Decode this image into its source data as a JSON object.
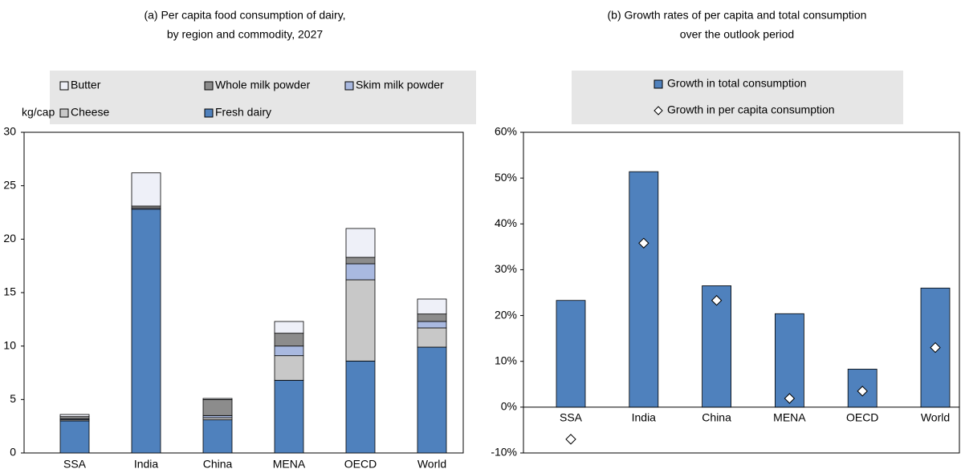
{
  "chart_data": [
    {
      "type": "bar",
      "stacked": true,
      "title": [
        "(a) Per capita food consumption of dairy,",
        "by region and commodity, 2027"
      ],
      "y_label": "kg/cap",
      "categories": [
        "SSA",
        "India",
        "China",
        "MENA",
        "OECD",
        "World"
      ],
      "series": [
        {
          "name": "Fresh dairy",
          "color": "#4f81bd",
          "values": [
            3.0,
            22.8,
            3.1,
            6.8,
            8.6,
            9.9
          ]
        },
        {
          "name": "Cheese",
          "color": "#c8c8c8",
          "values": [
            0.1,
            0.0,
            0.2,
            2.3,
            7.6,
            1.8
          ]
        },
        {
          "name": "Skim milk powder",
          "color": "#a9b9e0",
          "values": [
            0.1,
            0.1,
            0.2,
            0.9,
            1.5,
            0.6
          ]
        },
        {
          "name": "Whole milk powder",
          "color": "#8c8c8c",
          "values": [
            0.2,
            0.2,
            1.5,
            1.2,
            0.6,
            0.7
          ]
        },
        {
          "name": "Butter",
          "color": "#eef0f8",
          "values": [
            0.2,
            3.1,
            0.1,
            1.1,
            2.7,
            1.4
          ]
        }
      ],
      "ylim": [
        0,
        30
      ],
      "yticks": [
        0,
        5,
        10,
        15,
        20,
        25,
        30
      ]
    },
    {
      "type": "bar",
      "title": [
        "(b) Growth rates of per capita and total consumption",
        "over the outlook period"
      ],
      "categories": [
        "SSA",
        "India",
        "China",
        "MENA",
        "OECD",
        "World"
      ],
      "series": [
        {
          "name": "Growth in total consumption",
          "color": "#4f81bd",
          "values": [
            23.3,
            51.4,
            26.5,
            20.4,
            8.3,
            26.0
          ]
        },
        {
          "name": "Growth in per capita consumption",
          "color": "#ffffff",
          "marker": "diamond",
          "values": [
            -7.0,
            35.8,
            23.3,
            1.9,
            3.5,
            13.0
          ]
        }
      ],
      "ylim": [
        -10,
        60
      ],
      "yticks": [
        {
          "value": -10,
          "label": "-10%"
        },
        {
          "value": 0,
          "label": "0%"
        },
        {
          "value": 10,
          "label": "10%"
        },
        {
          "value": 20,
          "label": "20%"
        },
        {
          "value": 30,
          "label": "30%"
        },
        {
          "value": 40,
          "label": "40%"
        },
        {
          "value": 50,
          "label": "50%"
        },
        {
          "value": 60,
          "label": "60%"
        }
      ]
    }
  ]
}
